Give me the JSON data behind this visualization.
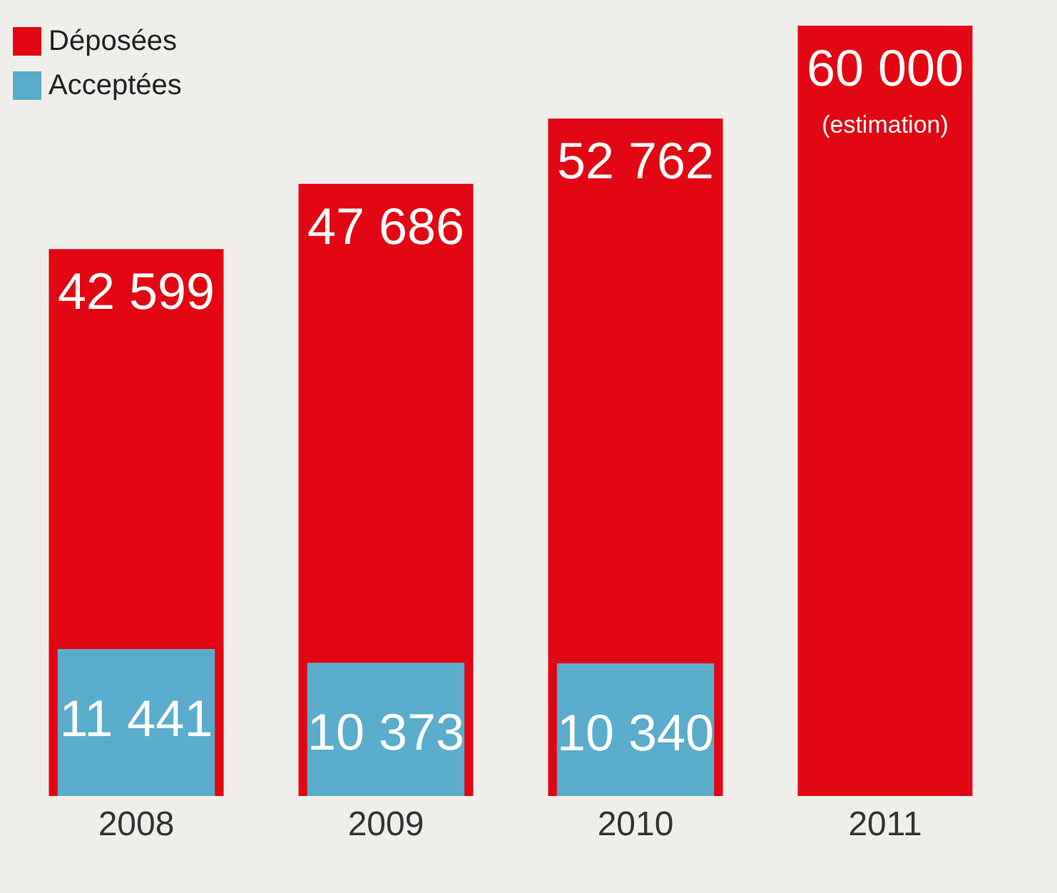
{
  "chart_data": {
    "type": "bar",
    "categories": [
      "2008",
      "2009",
      "2010",
      "2011"
    ],
    "series": [
      {
        "name": "Déposées",
        "color": "#e30613",
        "values": [
          42599,
          47686,
          52762,
          60000
        ],
        "value_labels": [
          "42 599",
          "47 686",
          "52 762",
          "60 000"
        ]
      },
      {
        "name": "Acceptées",
        "color": "#5aaccc",
        "values": [
          11441,
          10373,
          10340,
          null
        ],
        "value_labels": [
          "11 441",
          "10 373",
          "10 340",
          null
        ]
      }
    ],
    "annotations": [
      "(estimation)"
    ],
    "legend": "top left"
  }
}
